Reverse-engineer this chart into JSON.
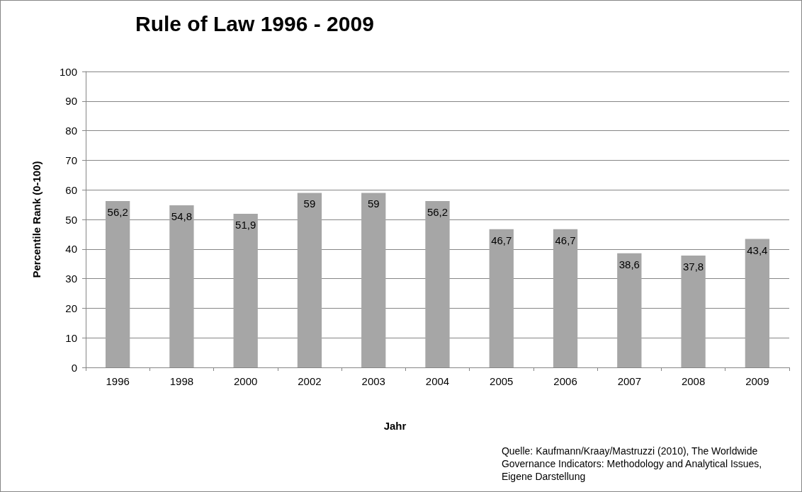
{
  "chart_data": {
    "type": "bar",
    "title": "Rule of Law 1996 - 2009",
    "xlabel": "Jahr",
    "ylabel": "Percentile Rank (0-100)",
    "categories": [
      "1996",
      "1998",
      "2000",
      "2002",
      "2003",
      "2004",
      "2005",
      "2006",
      "2007",
      "2008",
      "2009"
    ],
    "values": [
      56.2,
      54.8,
      51.9,
      59,
      59,
      56.2,
      46.7,
      46.7,
      38.6,
      37.8,
      43.4
    ],
    "value_labels": [
      "56,2",
      "54,8",
      "51,9",
      "59",
      "59",
      "56,2",
      "46,7",
      "46,7",
      "38,6",
      "37,8",
      "43,4"
    ],
    "color": "#a6a6a6",
    "ylim": [
      0,
      100
    ],
    "yticks": [
      0,
      10,
      20,
      30,
      40,
      50,
      60,
      70,
      80,
      90,
      100
    ],
    "grid": "y",
    "annotations": [
      "Quelle: Kaufmann/Kraay/Mastruzzi (2010), The Worldwide\nGovernance Indicators: Methodology and Analytical Issues,\nEigene Darstellung"
    ]
  }
}
